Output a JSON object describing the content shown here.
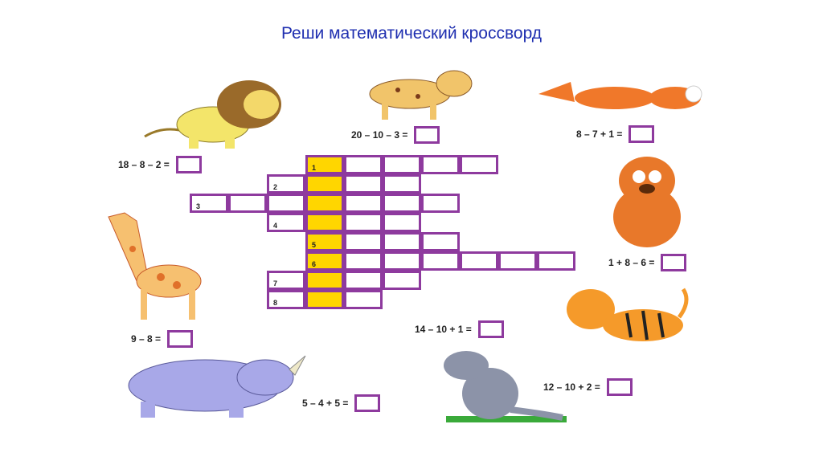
{
  "title": "Реши математический кроссворд",
  "colors": {
    "title": "#1f2fb0",
    "grid_border": "#8e3a9e",
    "key_column": "#ffd600"
  },
  "crossword": {
    "rows": [
      {
        "number": "1",
        "start_col": 3,
        "length": 5
      },
      {
        "number": "2",
        "start_col": 2,
        "length": 4
      },
      {
        "number": "3",
        "start_col": 0,
        "length": 7
      },
      {
        "number": "4",
        "start_col": 2,
        "length": 4
      },
      {
        "number": "5",
        "start_col": 3,
        "length": 4
      },
      {
        "number": "6",
        "start_col": 3,
        "length": 7
      },
      {
        "number": "7",
        "start_col": 2,
        "length": 4
      },
      {
        "number": "8",
        "start_col": 2,
        "length": 3
      }
    ],
    "key_col": 3
  },
  "equations": [
    {
      "text": "18 – 8 – 2 =",
      "animal": "lion"
    },
    {
      "text": "20 – 10 – 3 =",
      "animal": "lynx"
    },
    {
      "text": "8 – 7 + 1 =",
      "animal": "fox"
    },
    {
      "text": "1 + 8 – 6 =",
      "animal": "bear"
    },
    {
      "text": "9 – 8 =",
      "animal": "giraffe"
    },
    {
      "text": "14 – 10 + 1 =",
      "animal": "tiger"
    },
    {
      "text": "12 – 10 + 2 =",
      "animal": "wolf"
    },
    {
      "text": "5 – 4 + 5 =",
      "animal": "rhino"
    }
  ]
}
